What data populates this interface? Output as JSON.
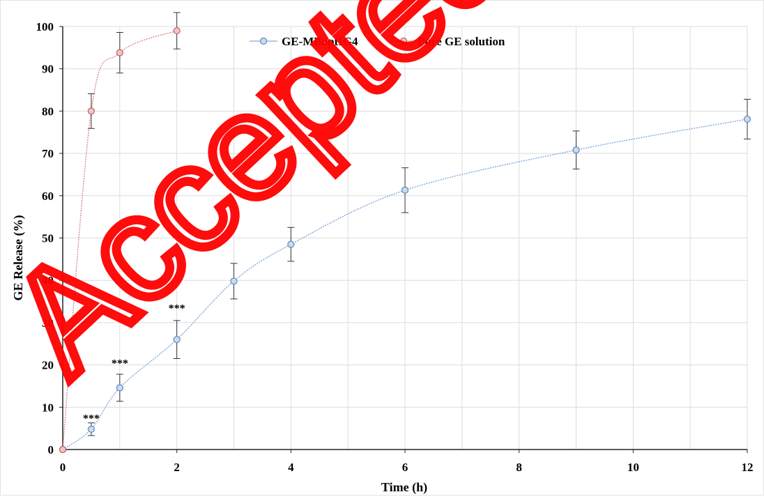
{
  "watermark": "Accepted",
  "chart_data": {
    "type": "line",
    "xlabel": "Time (h)",
    "ylabel": "GE Release (%)",
    "xlim": [
      0,
      12
    ],
    "ylim": [
      0,
      100
    ],
    "xticks": [
      0,
      2,
      4,
      6,
      8,
      10,
      12
    ],
    "yticks": [
      0,
      10,
      20,
      30,
      40,
      50,
      60,
      70,
      80,
      90,
      100
    ],
    "grid": true,
    "legend_position": "top",
    "series": [
      {
        "name": "GE-MBoptIG4",
        "color": "#7fa8d8",
        "x": [
          0,
          0.5,
          1,
          2,
          3,
          4,
          6,
          9,
          12
        ],
        "y": [
          0,
          4.8,
          14.6,
          26,
          39.8,
          48.5,
          61.3,
          70.8,
          78.1
        ],
        "error": [
          0,
          1.5,
          3.2,
          4.5,
          4.2,
          4.0,
          5.3,
          4.5,
          4.7
        ]
      },
      {
        "name": "Pure GE solution",
        "color": "#d98a8a",
        "x": [
          0,
          0.5,
          1,
          2
        ],
        "y": [
          0,
          80,
          93.8,
          99
        ],
        "error": [
          0,
          4.1,
          4.8,
          4.3
        ]
      }
    ],
    "annotations": [
      {
        "text": "***",
        "x": 0.5,
        "y": 7.5
      },
      {
        "text": "***",
        "x": 1,
        "y": 20.5
      },
      {
        "text": "***",
        "x": 2,
        "y": 33.5
      }
    ]
  }
}
